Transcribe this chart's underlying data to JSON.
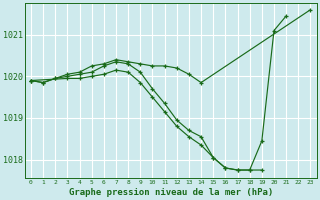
{
  "title": "Graphe pression niveau de la mer (hPa)",
  "bg_color": "#ceeaed",
  "grid_color": "#ffffff",
  "line_color": "#1a6b1a",
  "ylim": [
    1017.55,
    1021.75
  ],
  "yticks": [
    1018,
    1019,
    1020,
    1021
  ],
  "xticks": [
    0,
    1,
    2,
    3,
    4,
    5,
    6,
    7,
    8,
    9,
    10,
    11,
    12,
    13,
    14,
    15,
    16,
    17,
    18,
    19,
    20,
    21,
    22,
    23
  ],
  "series": [
    {
      "x": [
        0,
        1,
        2,
        3,
        4,
        5,
        6,
        7,
        8,
        9,
        10,
        11,
        12,
        13,
        14,
        23
      ],
      "y": [
        1019.9,
        1019.85,
        1019.95,
        1020.05,
        1020.1,
        1020.25,
        1020.3,
        1020.4,
        1020.35,
        1020.3,
        1020.25,
        1020.25,
        1020.2,
        1020.05,
        1019.85,
        1021.6
      ]
    },
    {
      "x": [
        0,
        1,
        2,
        3,
        4,
        5,
        6,
        7,
        8,
        9,
        10,
        11,
        12,
        13,
        14,
        15,
        16,
        17,
        18,
        19,
        20,
        21
      ],
      "y": [
        1019.9,
        1019.85,
        1019.95,
        1020.0,
        1020.05,
        1020.1,
        1020.25,
        1020.35,
        1020.3,
        1020.1,
        1019.7,
        1019.35,
        1018.95,
        1018.7,
        1018.55,
        1018.05,
        1017.8,
        1017.75,
        1017.75,
        1018.45,
        1021.1,
        1021.45
      ]
    },
    {
      "x": [
        0,
        3,
        4,
        5,
        6,
        7,
        8,
        9,
        10,
        11,
        12,
        13,
        14,
        15,
        16,
        17,
        18,
        19
      ],
      "y": [
        1019.9,
        1019.95,
        1019.95,
        1020.0,
        1020.05,
        1020.15,
        1020.1,
        1019.85,
        1019.5,
        1019.15,
        1018.8,
        1018.55,
        1018.35,
        1018.05,
        1017.8,
        1017.75,
        1017.75,
        1017.75
      ]
    }
  ]
}
